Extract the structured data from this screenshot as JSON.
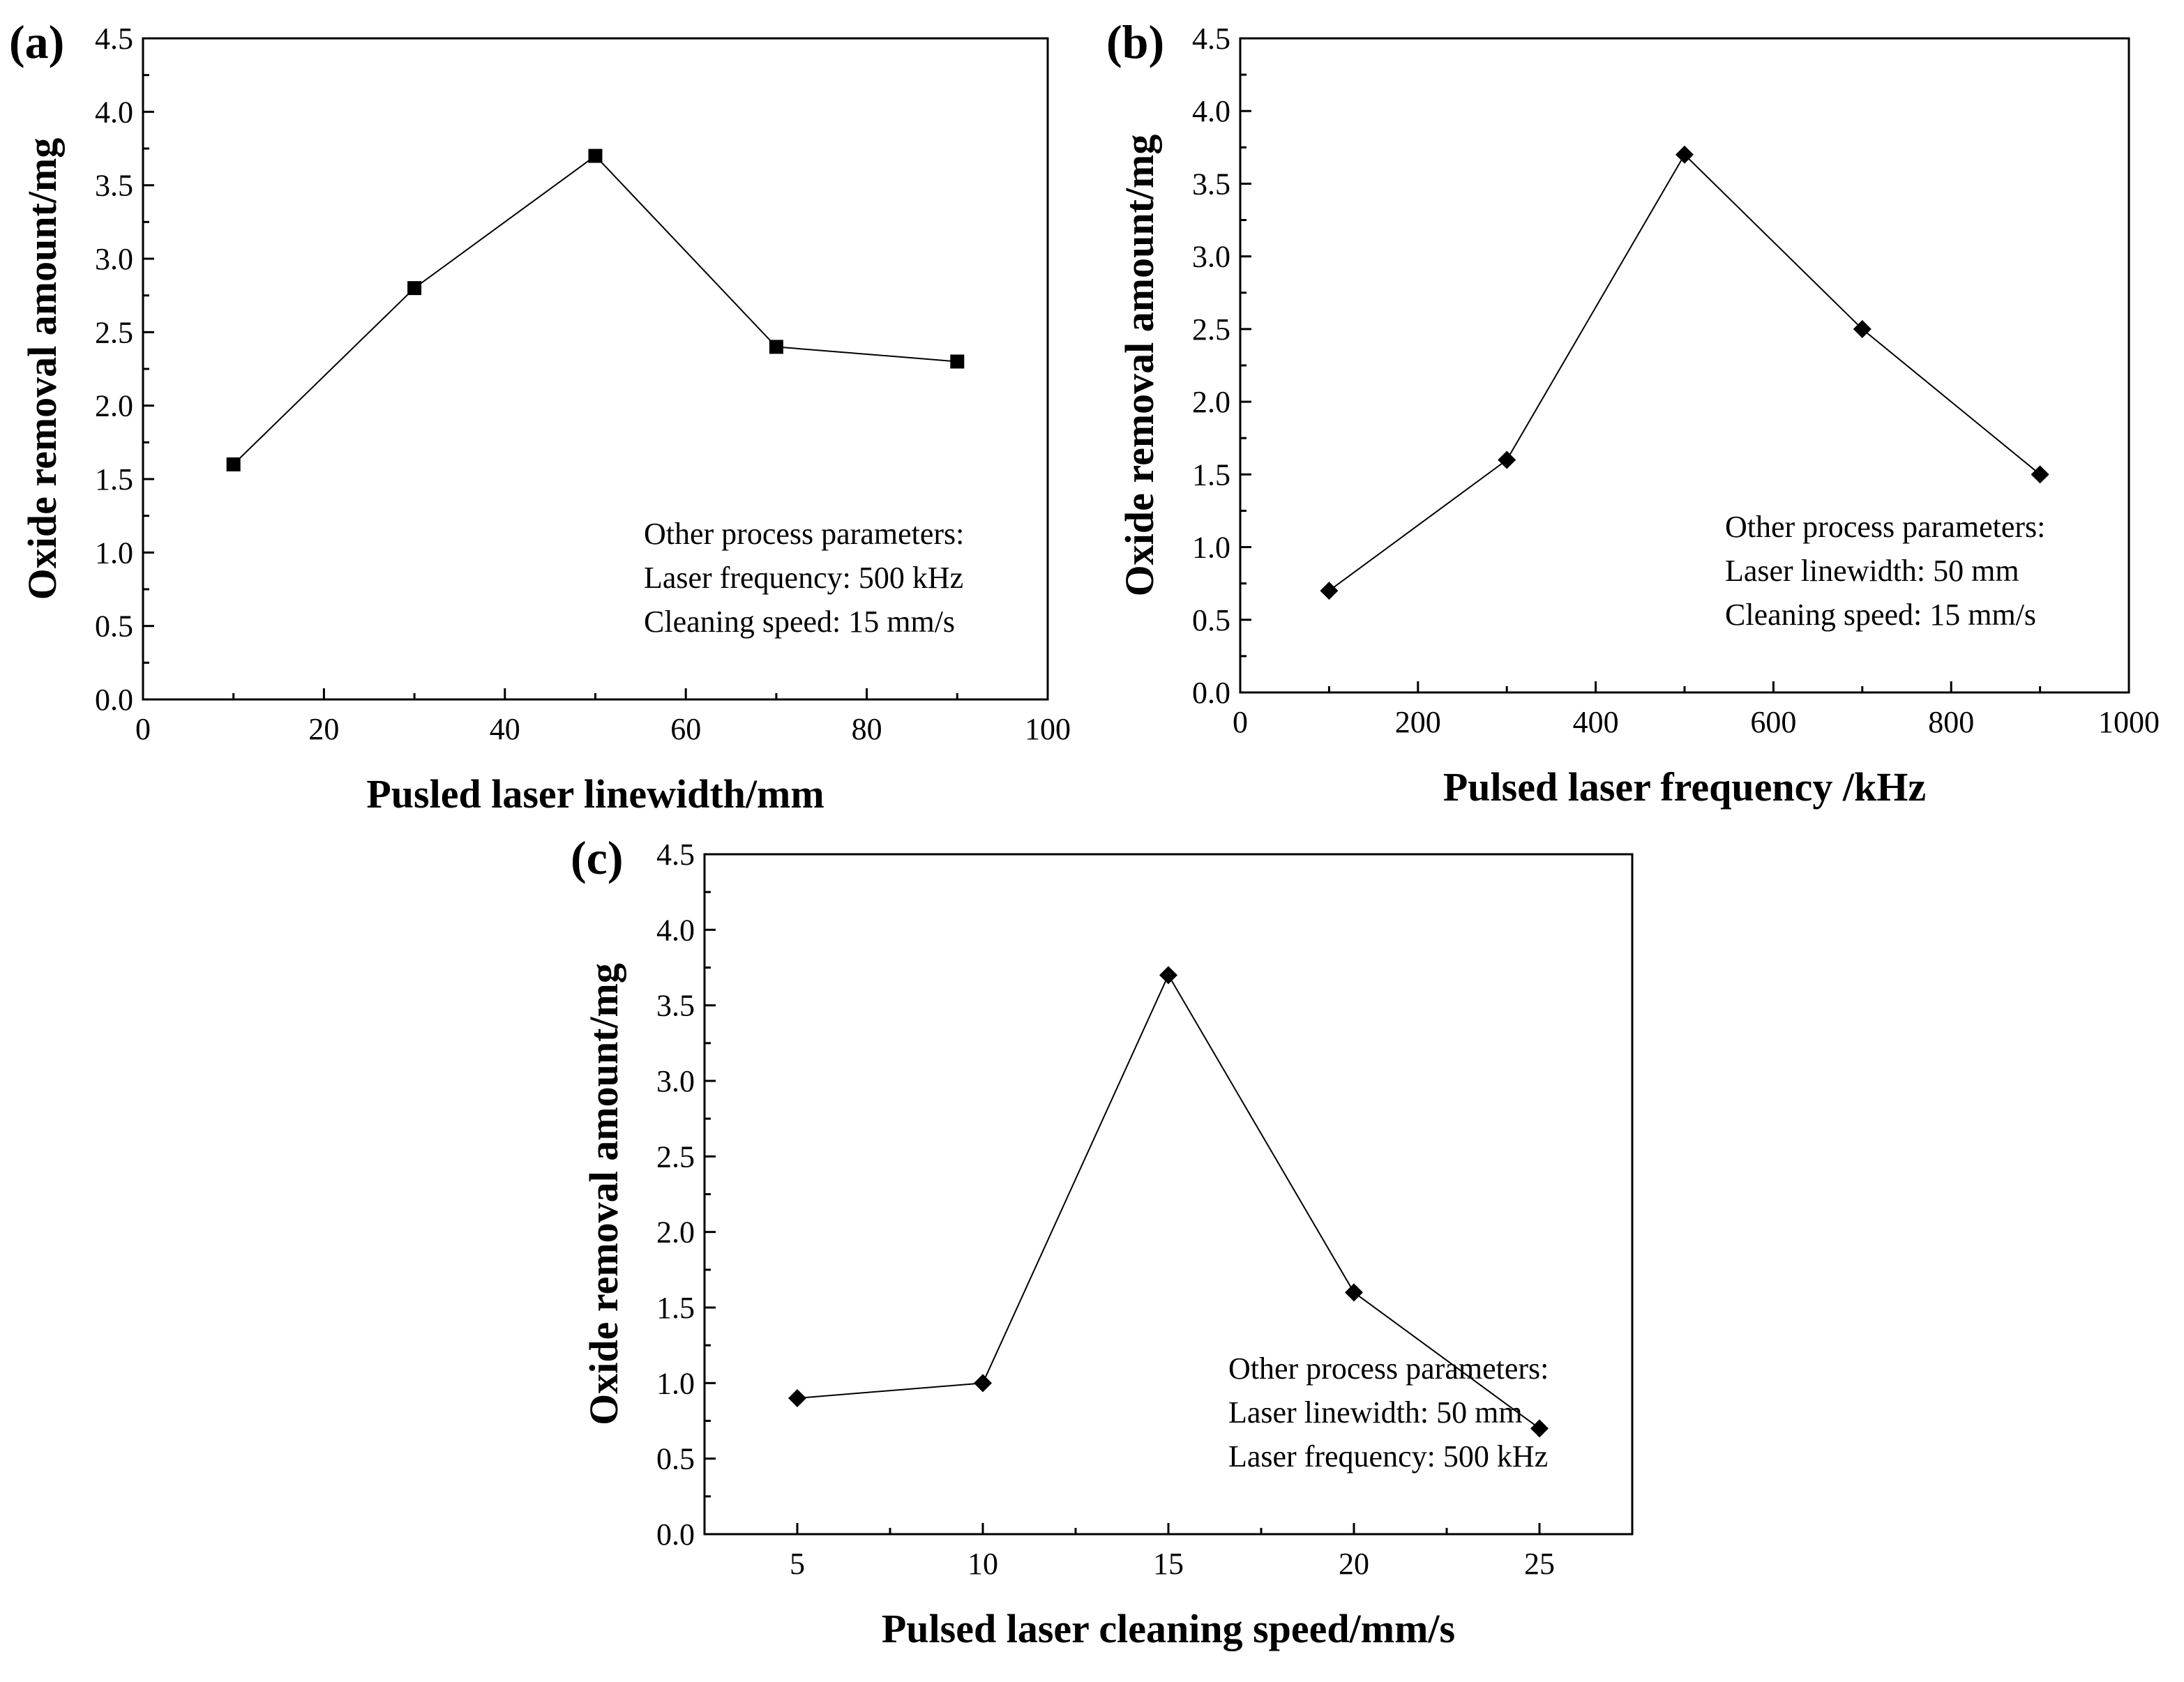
{
  "chart_data": [
    {
      "type": "line",
      "panel_label": "(a)",
      "title": "",
      "xlabel": "Pusled laser linewidth/mm",
      "ylabel": "Oxide removal amount/mg",
      "xlim": [
        0,
        100
      ],
      "ylim": [
        0,
        4.5
      ],
      "xticks": [
        "0",
        "20",
        "40",
        "60",
        "80",
        "100"
      ],
      "yticks": [
        "0.0",
        "0.5",
        "1.0",
        "1.5",
        "2.0",
        "2.5",
        "3.0",
        "3.5",
        "4.0",
        "4.5"
      ],
      "grid": false,
      "marker": "square",
      "series": [
        {
          "name": "Oxide removal amount",
          "x": [
            10,
            30,
            50,
            70,
            90
          ],
          "y": [
            1.6,
            2.8,
            3.7,
            2.4,
            2.3
          ]
        }
      ],
      "annotation": {
        "placement": "bottom-right",
        "lines": [
          "Other process parameters:",
          "Laser frequency: 500 kHz",
          "Cleaning speed: 15 mm/s"
        ]
      }
    },
    {
      "type": "line",
      "panel_label": "(b)",
      "title": "",
      "xlabel": "Pulsed laser frequency /kHz",
      "ylabel": "Oxide removal amount/mg",
      "xlim": [
        0,
        1000
      ],
      "ylim": [
        0,
        4.5
      ],
      "xticks": [
        "0",
        "200",
        "400",
        "600",
        "800",
        "1000"
      ],
      "yticks": [
        "0.0",
        "0.5",
        "1.0",
        "1.5",
        "2.0",
        "2.5",
        "3.0",
        "3.5",
        "4.0",
        "4.5"
      ],
      "grid": false,
      "marker": "diamond",
      "series": [
        {
          "name": "Oxide removal amount",
          "x": [
            100,
            300,
            500,
            700,
            900
          ],
          "y": [
            0.7,
            1.6,
            3.7,
            2.5,
            1.5
          ]
        }
      ],
      "annotation": {
        "placement": "bottom-right",
        "lines": [
          "Other process parameters:",
          "Laser linewidth: 50 mm",
          "Cleaning speed: 15 mm/s"
        ]
      }
    },
    {
      "type": "line",
      "panel_label": "(c)",
      "title": "",
      "xlabel": "Pulsed laser cleaning speed/mm/s",
      "ylabel": "Oxide removal amount/mg",
      "xlim": [
        2.5,
        27.5
      ],
      "ylim": [
        0,
        4.5
      ],
      "xticks": [
        "5",
        "10",
        "15",
        "20",
        "25"
      ],
      "yticks": [
        "0.0",
        "0.5",
        "1.0",
        "1.5",
        "2.0",
        "2.5",
        "3.0",
        "3.5",
        "4.0",
        "4.5"
      ],
      "grid": false,
      "marker": "diamond",
      "series": [
        {
          "name": "Oxide removal amount",
          "x": [
            5,
            10,
            15,
            20,
            25
          ],
          "y": [
            0.9,
            1.0,
            3.7,
            1.6,
            0.7
          ]
        }
      ],
      "annotation": {
        "placement": "bottom-right",
        "lines": [
          "Other process parameters:",
          "Laser linewidth: 50 mm",
          "Laser frequency: 500 kHz"
        ]
      }
    }
  ]
}
